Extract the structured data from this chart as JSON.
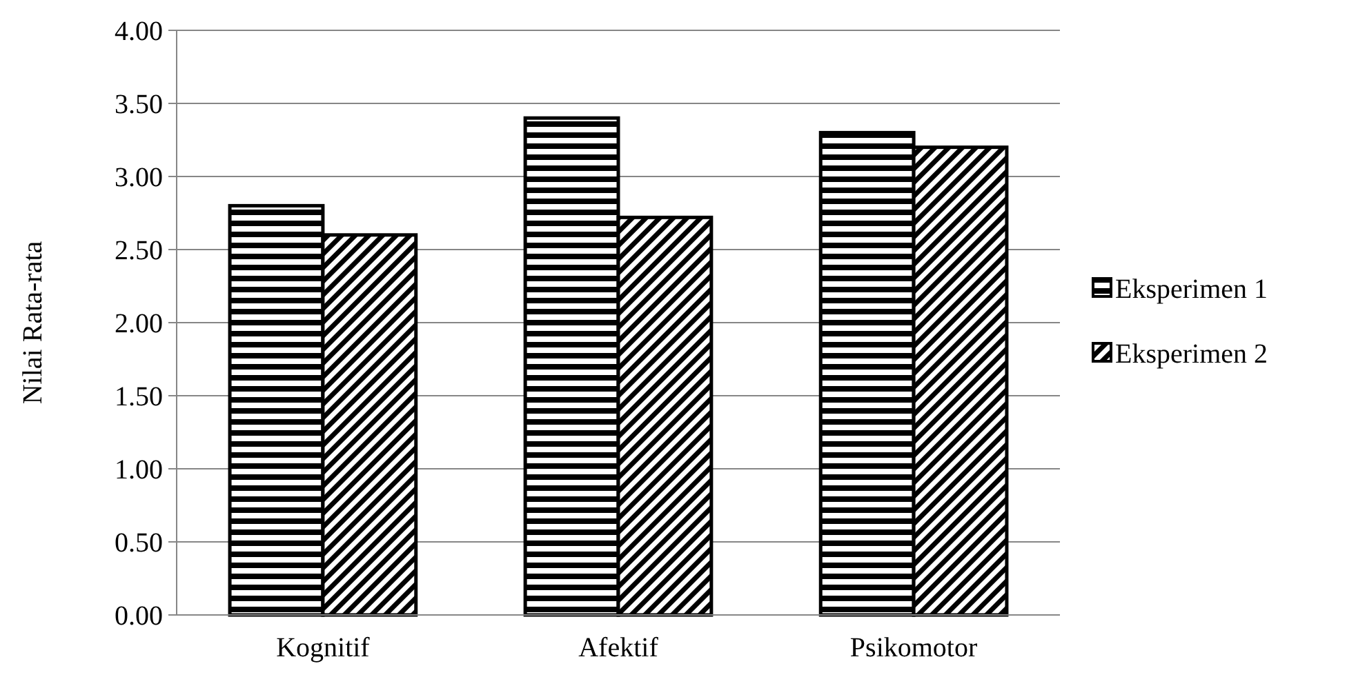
{
  "chart_data": {
    "type": "bar",
    "ylabel": "Nilai Rata-rata",
    "categories": [
      "Kognitif",
      "Afektif",
      "Psikomotor"
    ],
    "series": [
      {
        "name": "Eksperimen 1",
        "color": "#000000",
        "values": [
          2.8,
          3.4,
          3.3
        ]
      },
      {
        "name": "Eksperimen 2",
        "color": "#000000",
        "values": [
          2.6,
          2.72,
          3.2
        ]
      }
    ],
    "ylim": [
      0,
      4
    ],
    "yticks": [
      {
        "value": 0,
        "label": "0.00"
      },
      {
        "value": 0.5,
        "label": "0.50"
      },
      {
        "value": 1,
        "label": "1.00"
      },
      {
        "value": 1.5,
        "label": "1.50"
      },
      {
        "value": 2,
        "label": "2.00"
      },
      {
        "value": 2.5,
        "label": "2.50"
      },
      {
        "value": 3,
        "label": "3.00"
      },
      {
        "value": 3.5,
        "label": "3.50"
      },
      {
        "value": 4,
        "label": "4.00"
      }
    ],
    "grid": "y",
    "legend": "right"
  }
}
